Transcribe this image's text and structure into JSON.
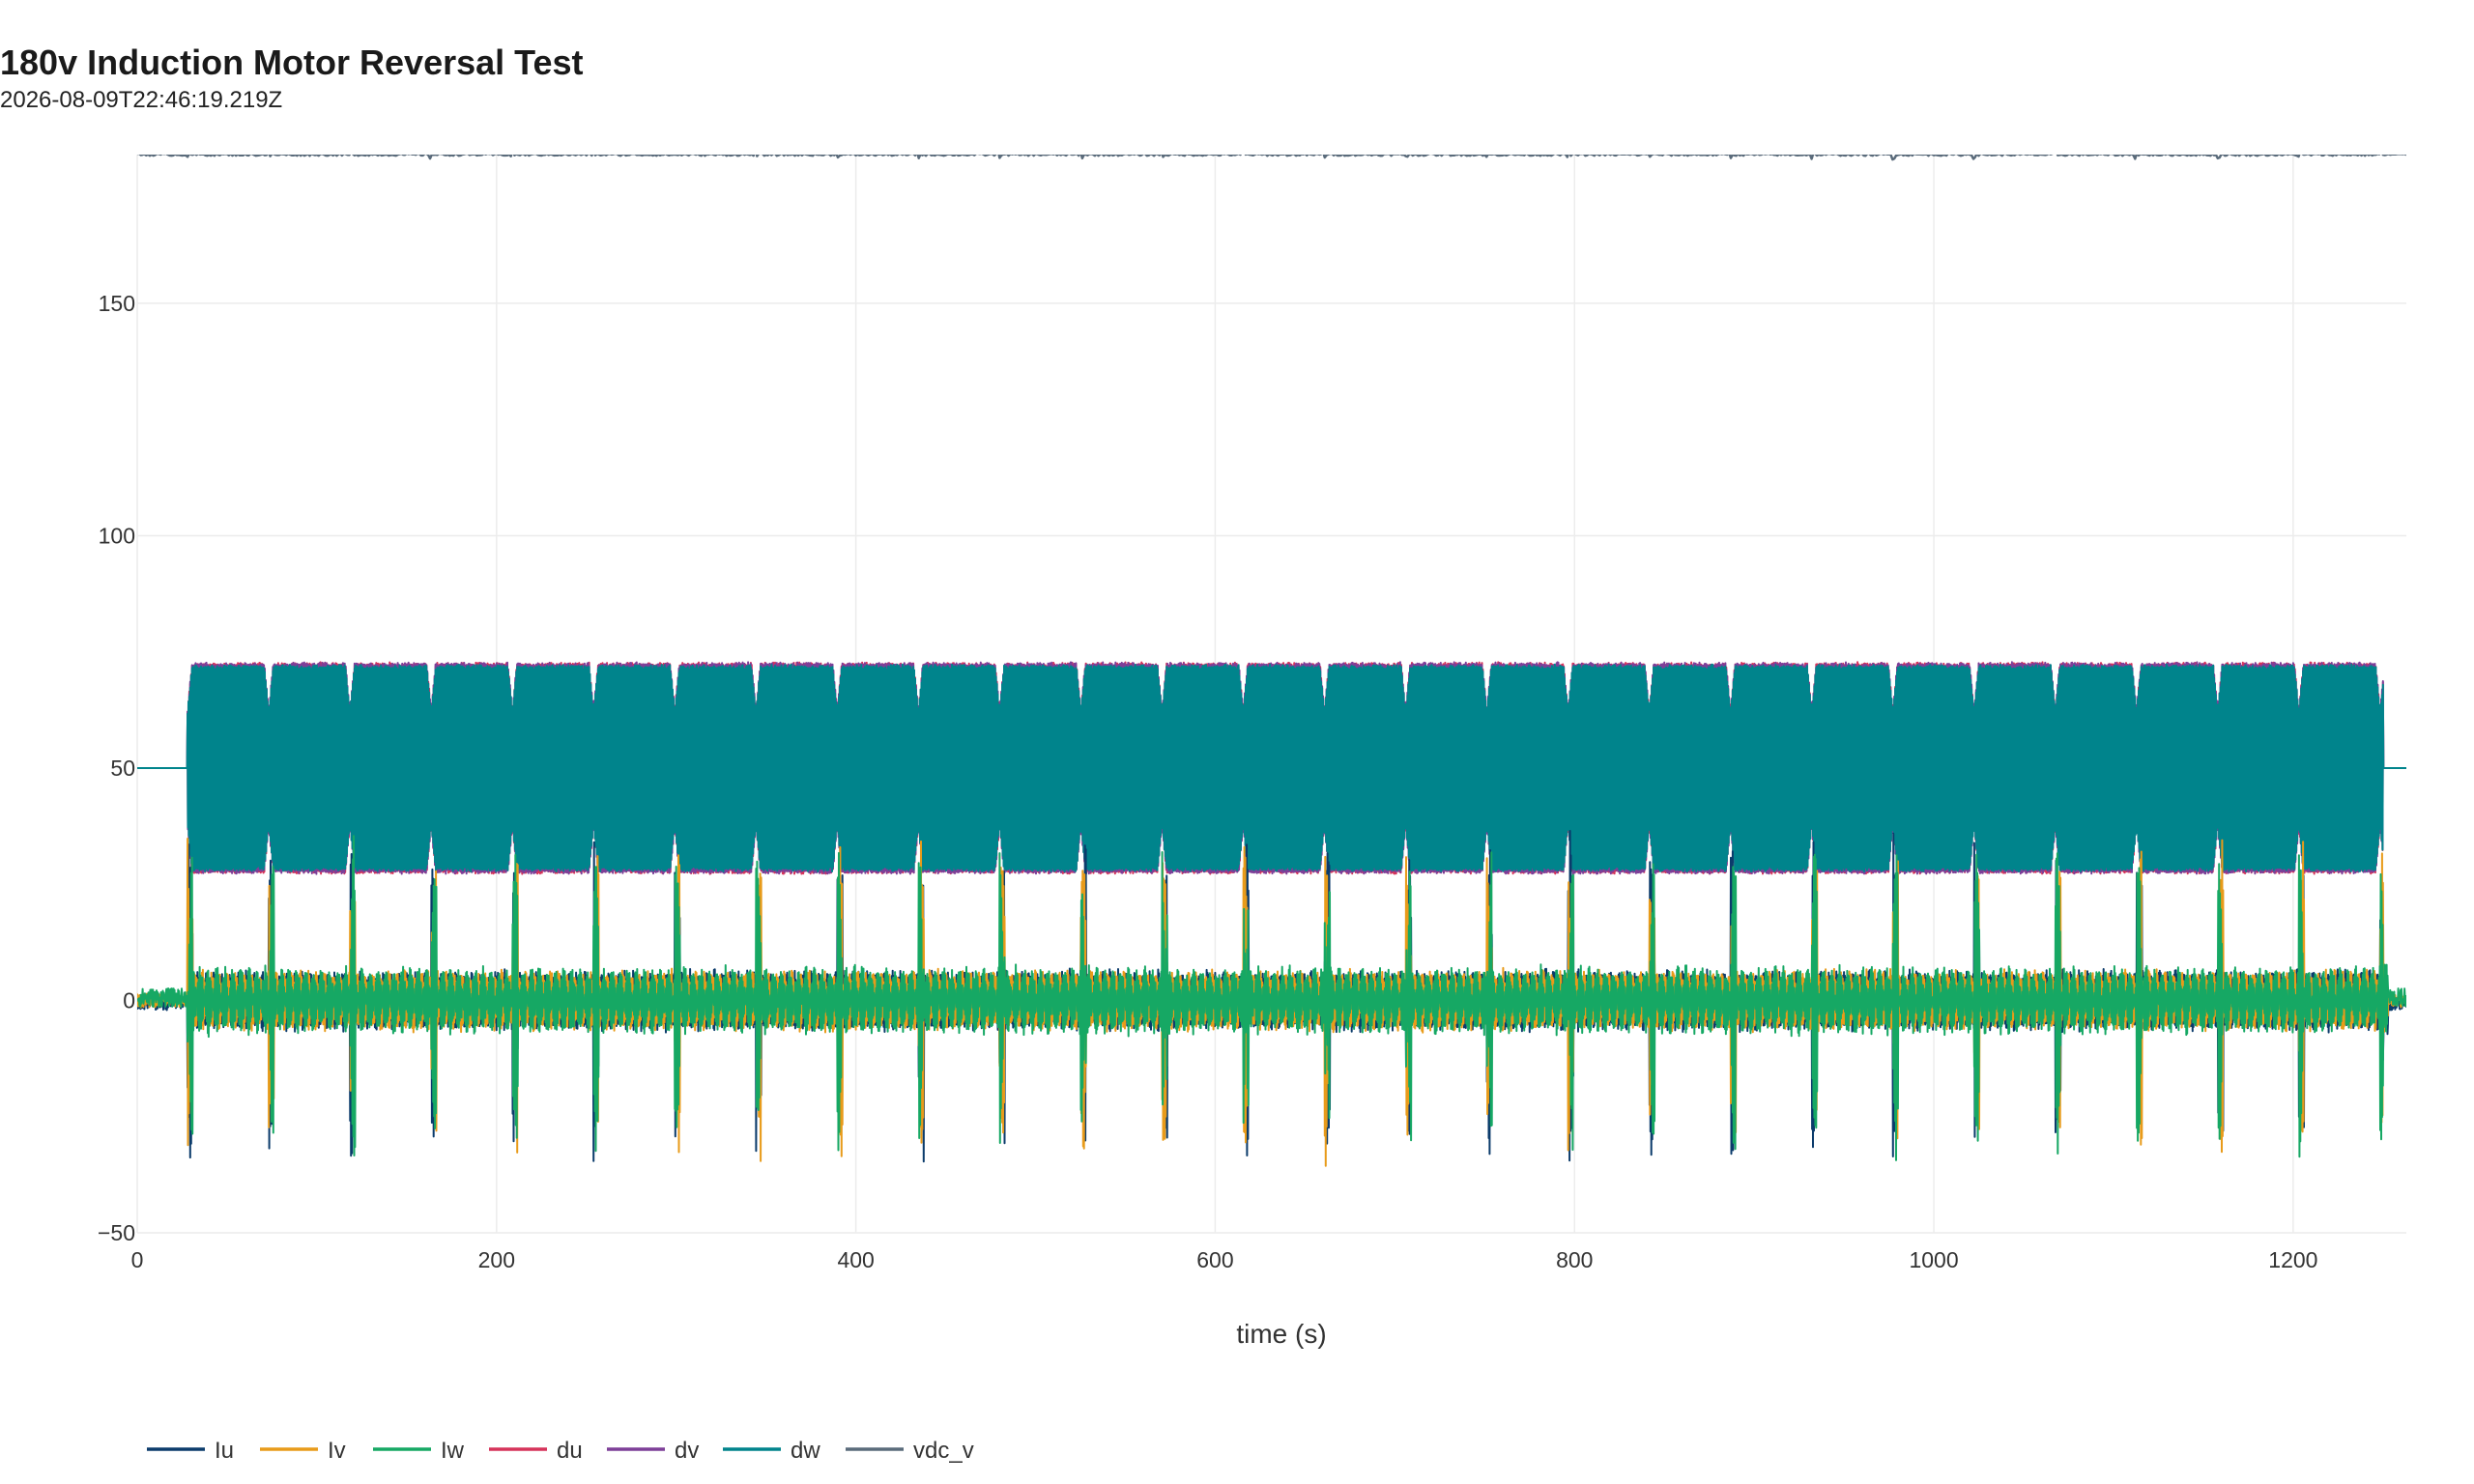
{
  "chart_data": {
    "type": "line",
    "title": "180v Induction Motor Reversal Test",
    "subtitle": "2026-08-09T22:46:19.219Z",
    "xlabel": "time (s)",
    "ylabel": "",
    "xlim": [
      0,
      1263
    ],
    "ylim": [
      -50,
      182
    ],
    "x_ticks": [
      0,
      200,
      400,
      600,
      800,
      1000,
      1200
    ],
    "x_tick_labels": [
      "0",
      "200",
      "400",
      "600",
      "800",
      "1000",
      "1200"
    ],
    "y_ticks": [
      -50,
      0,
      50,
      100,
      150
    ],
    "y_tick_labels": [
      "−50",
      "0",
      "50",
      "100",
      "150"
    ],
    "grid": true,
    "legend_position": "bottom-left",
    "reversal_cycle": {
      "start": 28,
      "end": 1250,
      "period": 45.2,
      "reversal_duration": 3
    },
    "series": [
      {
        "name": "Iu",
        "color": "#0b3b6b",
        "idle_level": 0,
        "run_amplitude": 5.5,
        "reversal_peak": 36,
        "noise": 1.5
      },
      {
        "name": "Iv",
        "color": "#e89b1a",
        "idle_level": 0,
        "run_amplitude": 5.5,
        "reversal_peak": 35,
        "noise": 1.5
      },
      {
        "name": "Iw",
        "color": "#16a864",
        "idle_level": 0,
        "run_amplitude": 6,
        "reversal_peak": 34,
        "noise": 2
      },
      {
        "name": "du",
        "color": "#d6335a",
        "idle_level": 50,
        "run_min": 27.5,
        "run_max": 72.5
      },
      {
        "name": "dv",
        "color": "#7d3f98",
        "idle_level": 50,
        "run_min": 27.5,
        "run_max": 72.5
      },
      {
        "name": "dw",
        "color": "#00848c",
        "idle_level": 50,
        "run_min": 28,
        "run_max": 72
      },
      {
        "name": "vdc_v",
        "color": "#5a6b7b",
        "level": 182,
        "noise": 0.5
      }
    ]
  }
}
